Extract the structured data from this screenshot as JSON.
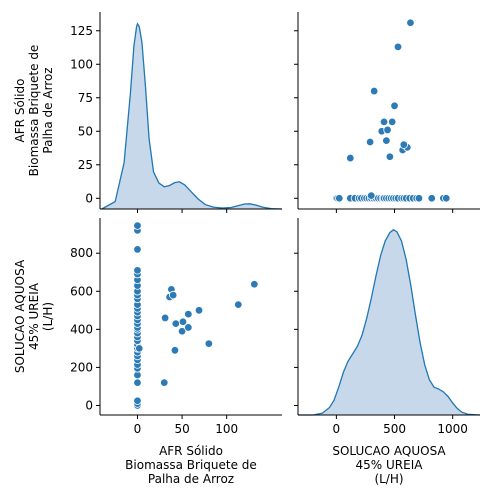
{
  "chart_data": {
    "type": "scatter",
    "variables": [
      {
        "id": "afr",
        "label_lines": [
          "AFR Sólido",
          "Biomassa Briquete de",
          "Palha de Arroz"
        ]
      },
      {
        "id": "sol",
        "label_lines": [
          "SOLUCAO AQUOSA",
          "45% UREIA",
          "(L/H)"
        ]
      }
    ],
    "afr_axis": {
      "range": [
        -42,
        162
      ],
      "ticks": [
        0,
        50,
        100
      ],
      "tick_labels": [
        "0",
        "50",
        "100"
      ]
    },
    "afr_row_axis": {
      "range": [
        -8,
        139
      ],
      "ticks": [
        0,
        25,
        50,
        75,
        100,
        125
      ],
      "tick_labels": [
        "0",
        "25",
        "50",
        "75",
        "100",
        "125"
      ]
    },
    "sol_axis": {
      "range": [
        -330,
        1235
      ],
      "ticks": [
        0,
        500,
        1000
      ],
      "tick_labels": [
        "0",
        "500",
        "1000"
      ]
    },
    "sol_row_axis": {
      "range": [
        -50,
        985
      ],
      "ticks": [
        0,
        200,
        400,
        600,
        800
      ],
      "tick_labels": [
        "0",
        "200",
        "400",
        "600",
        "800"
      ]
    },
    "points": [
      {
        "sol": 0,
        "afr": 0
      },
      {
        "sol": 10,
        "afr": 0
      },
      {
        "sol": 25,
        "afr": 0
      },
      {
        "sol": 120,
        "afr": 0
      },
      {
        "sol": 160,
        "afr": 0
      },
      {
        "sol": 195,
        "afr": 0
      },
      {
        "sol": 215,
        "afr": 0
      },
      {
        "sol": 240,
        "afr": 0
      },
      {
        "sol": 260,
        "afr": 0
      },
      {
        "sol": 280,
        "afr": 0
      },
      {
        "sol": 300,
        "afr": 0
      },
      {
        "sol": 320,
        "afr": 0
      },
      {
        "sol": 340,
        "afr": 0
      },
      {
        "sol": 360,
        "afr": 0
      },
      {
        "sol": 380,
        "afr": 0
      },
      {
        "sol": 400,
        "afr": 0
      },
      {
        "sol": 410,
        "afr": 0
      },
      {
        "sol": 430,
        "afr": 0
      },
      {
        "sol": 450,
        "afr": 0
      },
      {
        "sol": 470,
        "afr": 0
      },
      {
        "sol": 490,
        "afr": 0
      },
      {
        "sol": 510,
        "afr": 0
      },
      {
        "sol": 530,
        "afr": 0
      },
      {
        "sol": 560,
        "afr": 0
      },
      {
        "sol": 580,
        "afr": 0
      },
      {
        "sol": 600,
        "afr": 0
      },
      {
        "sol": 630,
        "afr": 0
      },
      {
        "sol": 660,
        "afr": 0
      },
      {
        "sol": 690,
        "afr": 0
      },
      {
        "sol": 710,
        "afr": 0
      },
      {
        "sol": 820,
        "afr": 0
      },
      {
        "sol": 920,
        "afr": 0
      },
      {
        "sol": 945,
        "afr": 0
      },
      {
        "sol": 300,
        "afr": 2
      },
      {
        "sol": 120,
        "afr": 30
      },
      {
        "sol": 460,
        "afr": 31
      },
      {
        "sol": 570,
        "afr": 36
      },
      {
        "sol": 610,
        "afr": 38
      },
      {
        "sol": 580,
        "afr": 40
      },
      {
        "sol": 290,
        "afr": 42
      },
      {
        "sol": 430,
        "afr": 43
      },
      {
        "sol": 390,
        "afr": 50
      },
      {
        "sol": 440,
        "afr": 51
      },
      {
        "sol": 410,
        "afr": 57
      },
      {
        "sol": 480,
        "afr": 57
      },
      {
        "sol": 500,
        "afr": 69
      },
      {
        "sol": 325,
        "afr": 80
      },
      {
        "sol": 530,
        "afr": 113
      },
      {
        "sol": 637,
        "afr": 131
      }
    ],
    "kde": {
      "afr": [
        {
          "x": -40,
          "d": 0.0
        },
        {
          "x": -25,
          "d": 0.04
        },
        {
          "x": -15,
          "d": 0.25
        },
        {
          "x": -8,
          "d": 0.62
        },
        {
          "x": -4,
          "d": 0.88
        },
        {
          "x": -1,
          "d": 0.985
        },
        {
          "x": 0,
          "d": 1.0
        },
        {
          "x": 2,
          "d": 0.985
        },
        {
          "x": 5,
          "d": 0.9
        },
        {
          "x": 9,
          "d": 0.66
        },
        {
          "x": 13,
          "d": 0.38
        },
        {
          "x": 18,
          "d": 0.2
        },
        {
          "x": 24,
          "d": 0.14
        },
        {
          "x": 30,
          "d": 0.12
        },
        {
          "x": 36,
          "d": 0.127
        },
        {
          "x": 42,
          "d": 0.143
        },
        {
          "x": 47,
          "d": 0.147
        },
        {
          "x": 53,
          "d": 0.13
        },
        {
          "x": 60,
          "d": 0.094
        },
        {
          "x": 68,
          "d": 0.054
        },
        {
          "x": 76,
          "d": 0.024
        },
        {
          "x": 85,
          "d": 0.01
        },
        {
          "x": 95,
          "d": 0.005
        },
        {
          "x": 105,
          "d": 0.008
        },
        {
          "x": 113,
          "d": 0.018
        },
        {
          "x": 120,
          "d": 0.027
        },
        {
          "x": 126,
          "d": 0.028
        },
        {
          "x": 132,
          "d": 0.022
        },
        {
          "x": 140,
          "d": 0.01
        },
        {
          "x": 150,
          "d": 0.002
        },
        {
          "x": 162,
          "d": 0.0
        }
      ],
      "sol": [
        {
          "x": -330,
          "d": 0.0
        },
        {
          "x": -200,
          "d": 0.0
        },
        {
          "x": -120,
          "d": 0.01
        },
        {
          "x": -60,
          "d": 0.04
        },
        {
          "x": -20,
          "d": 0.08
        },
        {
          "x": 20,
          "d": 0.15
        },
        {
          "x": 60,
          "d": 0.23
        },
        {
          "x": 100,
          "d": 0.29
        },
        {
          "x": 140,
          "d": 0.33
        },
        {
          "x": 180,
          "d": 0.37
        },
        {
          "x": 220,
          "d": 0.43
        },
        {
          "x": 260,
          "d": 0.52
        },
        {
          "x": 300,
          "d": 0.63
        },
        {
          "x": 340,
          "d": 0.75
        },
        {
          "x": 380,
          "d": 0.86
        },
        {
          "x": 420,
          "d": 0.94
        },
        {
          "x": 460,
          "d": 0.985
        },
        {
          "x": 490,
          "d": 1.0
        },
        {
          "x": 520,
          "d": 0.99
        },
        {
          "x": 560,
          "d": 0.94
        },
        {
          "x": 600,
          "d": 0.84
        },
        {
          "x": 640,
          "d": 0.7
        },
        {
          "x": 680,
          "d": 0.54
        },
        {
          "x": 720,
          "d": 0.39
        },
        {
          "x": 760,
          "d": 0.27
        },
        {
          "x": 800,
          "d": 0.19
        },
        {
          "x": 840,
          "d": 0.15
        },
        {
          "x": 880,
          "d": 0.14
        },
        {
          "x": 920,
          "d": 0.125
        },
        {
          "x": 960,
          "d": 0.1
        },
        {
          "x": 1000,
          "d": 0.065
        },
        {
          "x": 1040,
          "d": 0.035
        },
        {
          "x": 1080,
          "d": 0.015
        },
        {
          "x": 1130,
          "d": 0.004
        },
        {
          "x": 1235,
          "d": 0.0
        }
      ]
    },
    "colors": {
      "point": "#2c7bb6",
      "point_edge": "#ffffff",
      "kde_line": "#1f77b4",
      "kde_fill": "#c6d8ea"
    },
    "grid": false,
    "legend": "none"
  }
}
